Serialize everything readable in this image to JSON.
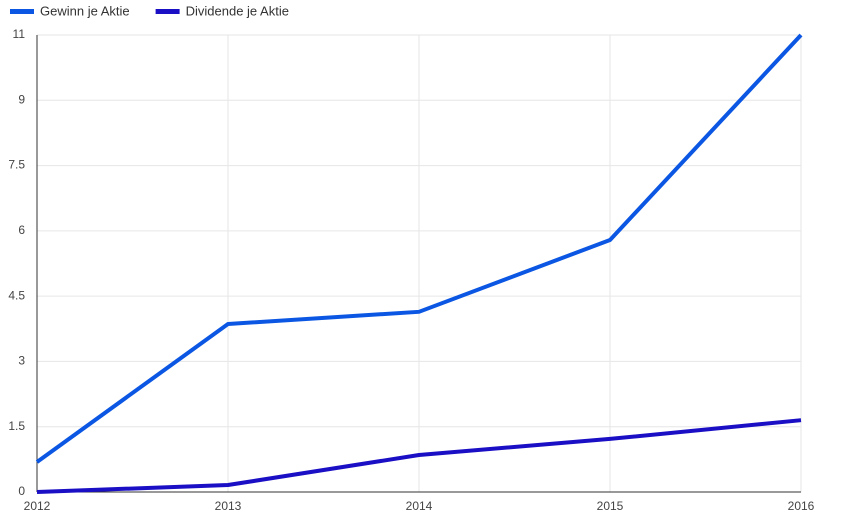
{
  "chart_data": {
    "type": "line",
    "x": [
      2012,
      2013,
      2014,
      2015,
      2016
    ],
    "xlim": [
      2012,
      2016
    ],
    "xticks": [
      2012,
      2013,
      2014,
      2015,
      2016
    ],
    "ylim": [
      0,
      10.5
    ],
    "yticks": [
      0,
      1.5,
      3,
      4.5,
      6,
      7.5,
      9,
      {
        "value": 10.5,
        "label": "11"
      }
    ],
    "grid": true,
    "series": [
      {
        "name": "Gewinn je Aktie",
        "color": "#0b57e3",
        "values": [
          0.69,
          3.86,
          4.14,
          5.79,
          10.5
        ]
      },
      {
        "name": "Dividende je Aktie",
        "color": "#1a0fc4",
        "values": [
          0,
          0.16,
          0.85,
          1.22,
          1.65
        ]
      }
    ]
  }
}
